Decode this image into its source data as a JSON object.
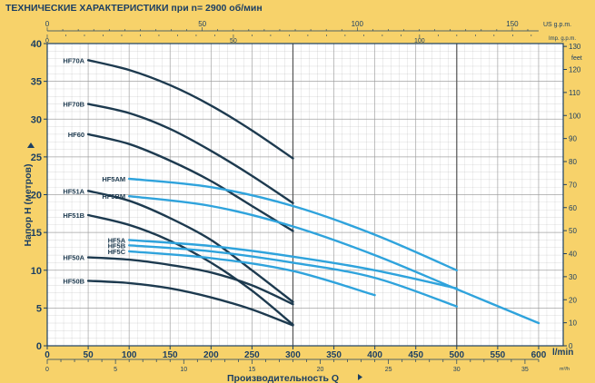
{
  "colors": {
    "background": "#f7d26a",
    "plot_background": "#ffffff",
    "grid": "#9a9a9a",
    "axis_text": "#1c3f63",
    "dark_curves": "#1d3a4f",
    "light_curves": "#2fa3dc"
  },
  "chart_data": {
    "type": "line",
    "title": "ТЕХНИЧЕСКИЕ ХАРАКТЕРИСТИКИ при n= 2900 об/мин",
    "xlabel": "Производительность Q",
    "ylabel": "Напор Н  (метров)",
    "x_unit": "l/min",
    "x2_unit": "m³/h",
    "xlim": [
      0,
      630
    ],
    "ylim": [
      0,
      40
    ],
    "x_ticks": [
      0,
      50,
      100,
      150,
      200,
      250,
      300,
      350,
      400,
      450,
      500,
      550,
      600
    ],
    "x2_ticks": [
      0,
      5,
      10,
      15,
      20,
      25,
      30,
      35
    ],
    "y_ticks": [
      0,
      5,
      10,
      15,
      20,
      25,
      30,
      35,
      40
    ],
    "top_us_unit": "US g.p.m.",
    "top_us_ticks": [
      0,
      50,
      100,
      150
    ],
    "top_imp_unit": "Imp. g.p.m.",
    "top_imp_ticks": [
      0,
      50,
      100
    ],
    "right_unit": "feet",
    "right_ticks": [
      0,
      10,
      20,
      30,
      40,
      50,
      60,
      70,
      80,
      90,
      100,
      110,
      120,
      130
    ],
    "grid": true,
    "series": [
      {
        "name": "HF70A",
        "color": "dark",
        "x": [
          50,
          100,
          150,
          200,
          250,
          300
        ],
        "y": [
          37.8,
          36.5,
          34.5,
          31.8,
          28.5,
          24.8
        ]
      },
      {
        "name": "HF70B",
        "color": "dark",
        "x": [
          50,
          100,
          150,
          200,
          250,
          300
        ],
        "y": [
          32,
          30.8,
          28.7,
          25.8,
          22.5,
          18.9
        ]
      },
      {
        "name": "HF60",
        "color": "dark",
        "x": [
          50,
          100,
          150,
          200,
          250,
          300
        ],
        "y": [
          28,
          26.7,
          24.5,
          21.8,
          18.5,
          15.2
        ]
      },
      {
        "name": "HF51A",
        "color": "dark",
        "x": [
          50,
          100,
          150,
          200,
          250,
          300
        ],
        "y": [
          20.5,
          19.2,
          16.9,
          14,
          10,
          5.8
        ]
      },
      {
        "name": "HF51B",
        "color": "dark",
        "x": [
          50,
          100,
          150,
          200,
          250,
          300
        ],
        "y": [
          17.3,
          16,
          13.9,
          11,
          7.3,
          2.8
        ]
      },
      {
        "name": "HF50A",
        "color": "dark",
        "x": [
          50,
          100,
          150,
          200,
          250,
          300
        ],
        "y": [
          11.7,
          11.4,
          10.7,
          9.7,
          8,
          5.5
        ]
      },
      {
        "name": "HF50B",
        "color": "dark",
        "x": [
          50,
          100,
          150,
          200,
          250,
          300
        ],
        "y": [
          8.6,
          8.3,
          7.6,
          6.4,
          4.8,
          2.7
        ]
      },
      {
        "name": "HF5AM",
        "color": "light",
        "x": [
          100,
          200,
          300,
          400,
          500
        ],
        "y": [
          22.1,
          21,
          18.5,
          14.7,
          10
        ]
      },
      {
        "name": "HF5BM",
        "color": "light",
        "x": [
          100,
          200,
          300,
          400,
          500,
          600
        ],
        "y": [
          19.8,
          18.5,
          15.8,
          12,
          7.5,
          3
        ]
      },
      {
        "name": "HF5A",
        "color": "light",
        "x": [
          100,
          200,
          300,
          400,
          500
        ],
        "y": [
          14,
          13.2,
          11.8,
          10,
          7.6
        ]
      },
      {
        "name": "HF5B",
        "color": "light",
        "x": [
          100,
          200,
          300,
          400,
          500
        ],
        "y": [
          13.3,
          12.5,
          11,
          9,
          5.2
        ]
      },
      {
        "name": "HF5C",
        "color": "light",
        "x": [
          100,
          200,
          300,
          400
        ],
        "y": [
          12.5,
          11.6,
          9.9,
          6.7
        ]
      }
    ]
  }
}
